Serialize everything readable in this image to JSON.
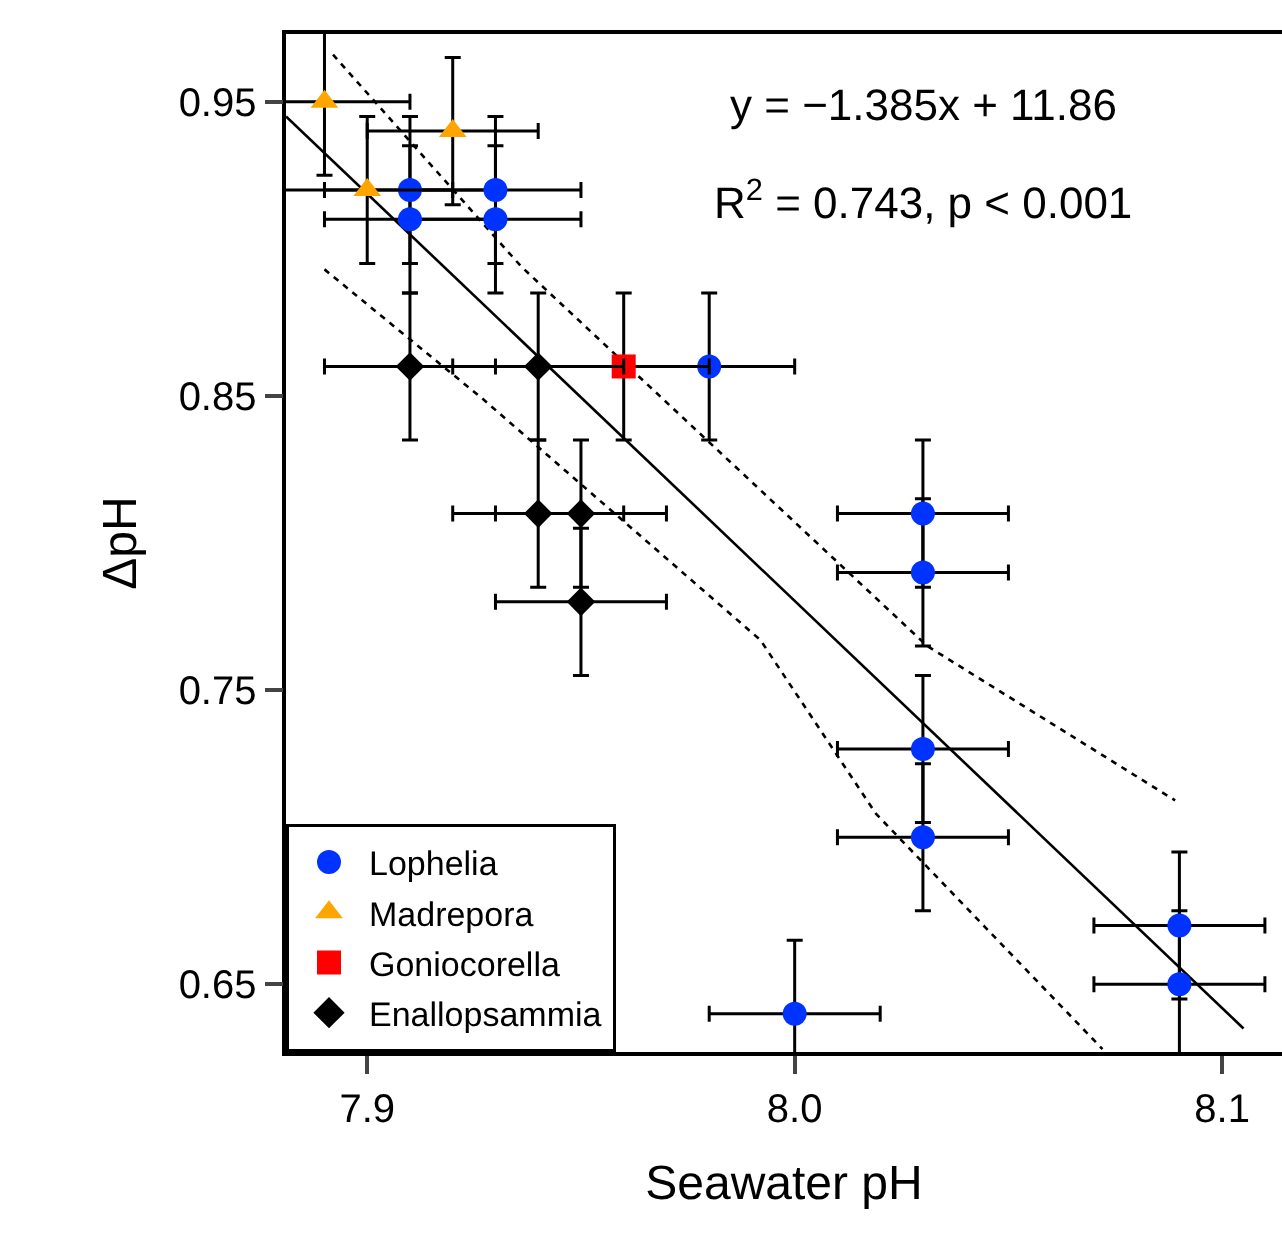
{
  "chart_data": {
    "type": "scatter",
    "xlabel": "Seawater pH",
    "ylabel": "ΔpH",
    "xlim": [
      7.881,
      8.114
    ],
    "ylim": [
      0.627,
      0.973
    ],
    "xticks": [
      {
        "value": 7.9,
        "label": "7.9"
      },
      {
        "value": 8.0,
        "label": "8.0"
      },
      {
        "value": 8.1,
        "label": "8.1"
      }
    ],
    "yticks": [
      0.95,
      0.85,
      0.75,
      0.65
    ],
    "grid": false,
    "legend": "bottom left",
    "annotations": [
      "y = −1.385x + 11.86",
      "R$^{2}$ = 0.743, p < 0.001"
    ],
    "series": [
      {
        "name": "Lophelia",
        "color": "#0033ff",
        "marker": "circle",
        "x": [
          7.91,
          7.93,
          7.91,
          7.93,
          7.98,
          8.03,
          8.03,
          8.03,
          8.03,
          8.0,
          8.09,
          8.09
        ],
        "values": [
          0.92,
          0.92,
          0.91,
          0.91,
          0.86,
          0.81,
          0.79,
          0.73,
          0.7,
          0.64,
          0.67,
          0.65
        ],
        "errors": [
          0.025,
          0.025,
          0.025,
          0.025,
          0.025,
          0.025,
          0.025,
          0.025,
          0.025,
          0.025,
          0.025,
          0.025
        ],
        "xerrors": [
          0.02,
          0.02,
          0.02,
          0.02,
          0.02,
          0.02,
          0.02,
          0.02,
          0.02,
          0.02,
          0.02,
          0.02
        ]
      },
      {
        "name": "Madrepora",
        "color": "#ffa500",
        "marker": "triangle",
        "x": [
          7.89,
          7.92,
          7.9
        ],
        "values": [
          0.95,
          0.94,
          0.92
        ],
        "errors": [
          0.025,
          0.025,
          0.025
        ],
        "xerrors": [
          0.02,
          0.02,
          0.02
        ]
      },
      {
        "name": "Goniocorella",
        "color": "#ff0000",
        "marker": "square",
        "x": [
          7.96
        ],
        "values": [
          0.86
        ],
        "errors": [
          0.025
        ],
        "xerrors": [
          0.02
        ]
      },
      {
        "name": "Enallopsammia",
        "color": "#000000",
        "marker": "diamond",
        "x": [
          7.91,
          7.94,
          7.94,
          7.95,
          7.95
        ],
        "values": [
          0.86,
          0.86,
          0.81,
          0.81,
          0.78
        ],
        "errors": [
          0.025,
          0.025,
          0.025,
          0.025,
          0.025
        ],
        "xerrors": [
          0.02,
          0.02,
          0.02,
          0.02,
          0.02
        ]
      },
      {
        "type": "line",
        "color": "#000000",
        "line_style": "solid",
        "x": [
          7.881,
          8.105
        ],
        "values": [
          0.945,
          0.635
        ]
      },
      {
        "type": "line",
        "color": "#000000",
        "line_style": "dotted",
        "x": [
          7.892,
          7.936,
          8.031,
          8.089
        ],
        "values": [
          0.966,
          0.894,
          0.765,
          0.7125
        ]
      },
      {
        "type": "line",
        "color": "#000000",
        "line_style": "dotted",
        "x": [
          7.89,
          7.927,
          7.992,
          8.019,
          8.072
        ],
        "values": [
          0.893,
          0.849,
          0.767,
          0.708,
          0.628
        ]
      }
    ]
  }
}
